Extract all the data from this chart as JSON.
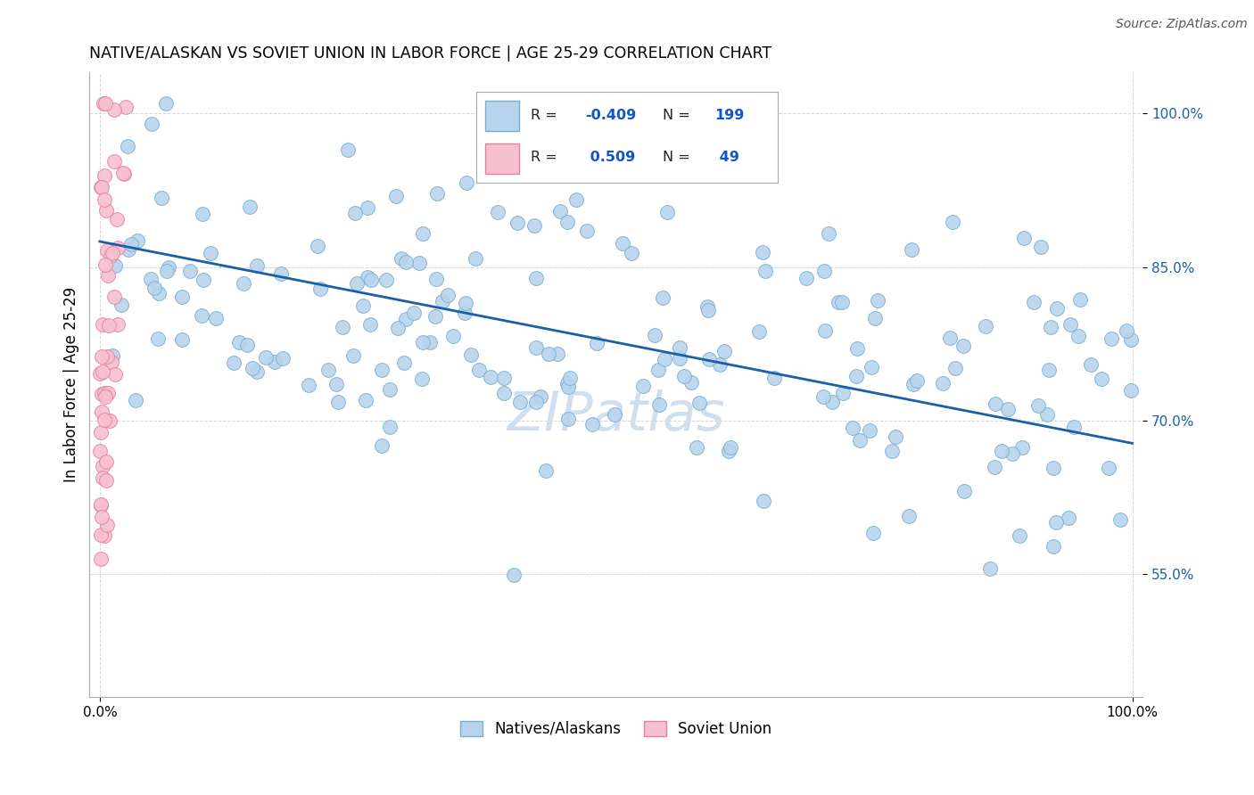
{
  "title": "NATIVE/ALASKAN VS SOVIET UNION IN LABOR FORCE | AGE 25-29 CORRELATION CHART",
  "source_text": "Source: ZipAtlas.com",
  "ylabel": "In Labor Force | Age 25-29",
  "xlim": [
    -0.01,
    1.01
  ],
  "ylim": [
    0.43,
    1.04
  ],
  "ytick_positions": [
    0.55,
    0.7,
    0.85,
    1.0
  ],
  "ytick_labels": [
    "55.0%",
    "70.0%",
    "85.0%",
    "100.0%"
  ],
  "blue_r": -0.409,
  "blue_n": 199,
  "pink_r": 0.509,
  "pink_n": 49,
  "blue_color": "#b8d4ed",
  "pink_color": "#f7c0d0",
  "blue_edge": "#7aafd4",
  "pink_edge": "#e87fa0",
  "trend_blue": "#1a5fa8",
  "background": "#ffffff",
  "grid_color": "#cccccc",
  "watermark_color": "#d0dff0",
  "trend_line_start_y": 0.875,
  "trend_line_end_y": 0.678,
  "title_fontsize": 12.5,
  "legend_r_color": "#1155cc",
  "legend_n_color": "#1155cc"
}
